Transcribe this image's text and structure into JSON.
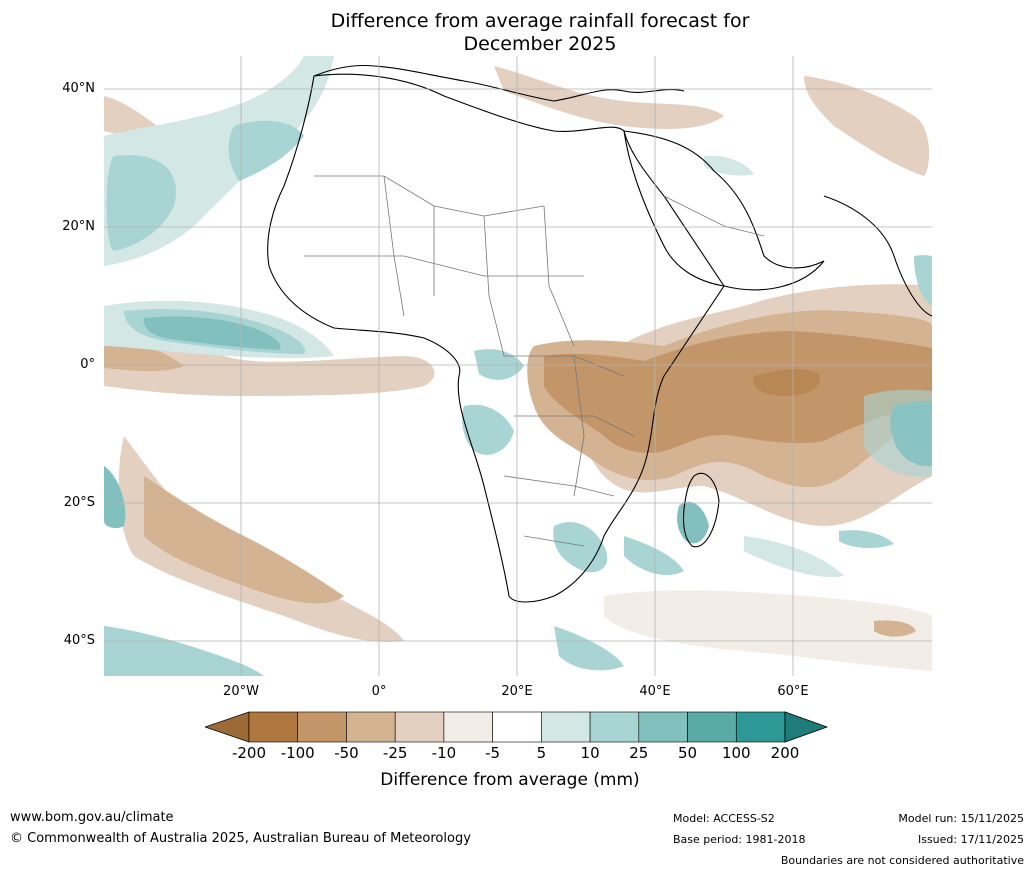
{
  "title": {
    "line1": "Difference from average rainfall forecast for",
    "line2": "December 2025"
  },
  "lat_labels": [
    "40°N",
    "20°N",
    "0°",
    "20°S",
    "40°S"
  ],
  "lon_labels": [
    "20°W",
    "0°",
    "20°E",
    "40°E",
    "60°E"
  ],
  "colorbar": {
    "title": "Difference from average (mm)",
    "ticks": [
      "-200",
      "-100",
      "-50",
      "-25",
      "-10",
      "-5",
      "5",
      "10",
      "25",
      "50",
      "100",
      "200"
    ],
    "colors": [
      "#9c6a36",
      "#ad773e",
      "#c39669",
      "#d4b393",
      "#e3d0c0",
      "#f2ede6",
      "#ffffff",
      "#d3e7e5",
      "#a8d4d3",
      "#82c0bf",
      "#5aaaa8",
      "#2e9896",
      "#1e7d7a"
    ]
  },
  "footer": {
    "website": "www.bom.gov.au/climate",
    "copyright": "© Commonwealth of Australia 2025, Australian Bureau of Meteorology",
    "model": "Model: ACCESS-S2",
    "base_period": "Base period: 1981-2018",
    "model_run": "Model run: 15/11/2025",
    "issued": "Issued: 17/11/2025",
    "disclaimer": "Boundaries are not considered authoritative"
  }
}
